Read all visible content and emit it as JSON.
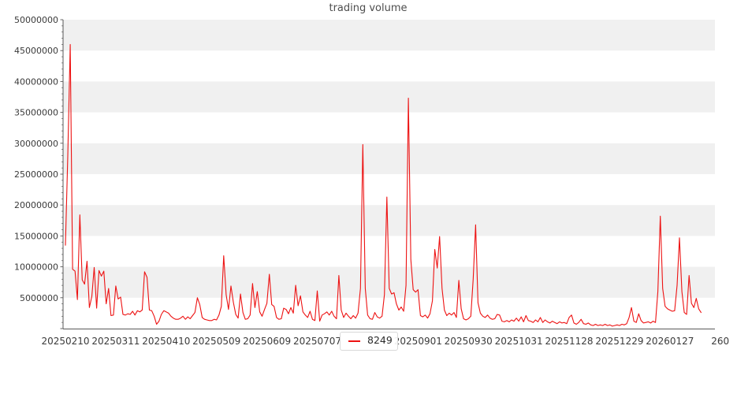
{
  "title": "trading volume",
  "legend": {
    "series_label": "8249",
    "marker": "red-dash"
  },
  "colors": {
    "line": "#ed1212",
    "band": "#f0f0f0",
    "axis": "#595959",
    "tick_label": "#3a3a3a",
    "title": "#4d4d4d",
    "legend_border": "#d8d8d8",
    "background": "#ffffff"
  },
  "chart_data": {
    "type": "line",
    "title": "trading volume",
    "xlabel": "",
    "ylabel": "",
    "ylim": [
      0,
      50000000
    ],
    "grid": "alternating horizontal gray bands every 5000000",
    "legend_position": "bottom-center below axis",
    "y_ticks": {
      "labels": [
        "50000000",
        "45000000",
        "40000000",
        "35000000",
        "30000000",
        "25000000",
        "20000000",
        "15000000",
        "10000000",
        "5000000"
      ],
      "values": [
        50000000,
        45000000,
        40000000,
        35000000,
        30000000,
        25000000,
        20000000,
        15000000,
        10000000,
        5000000
      ],
      "minor_tick_interval": 1000000
    },
    "x_ticks": [
      {
        "label": "20250210",
        "day": 0
      },
      {
        "label": "20250311",
        "day": 21
      },
      {
        "label": "20250410",
        "day": 42
      },
      {
        "label": "20250509",
        "day": 63
      },
      {
        "label": "20250609",
        "day": 84
      },
      {
        "label": "20250707",
        "day": 105
      },
      {
        "label": "20250901",
        "day": 147
      },
      {
        "label": "20250930",
        "day": 168
      },
      {
        "label": "20251031",
        "day": 189
      },
      {
        "label": "20251128",
        "day": 210
      },
      {
        "label": "20251229",
        "day": 231
      },
      {
        "label": "20260127",
        "day": 252
      },
      {
        "label": "260",
        "day": 273
      }
    ],
    "series": [
      {
        "name": "8249",
        "color": "#ed1212",
        "values": [
          13500000,
          28000000,
          46000000,
          9600000,
          9300000,
          4700000,
          18400000,
          7900000,
          7200000,
          10900000,
          3400000,
          5200000,
          9900000,
          3300000,
          9400000,
          8500000,
          9300000,
          4000000,
          6500000,
          2100000,
          2200000,
          6900000,
          4800000,
          5100000,
          2300000,
          2200000,
          2400000,
          2300000,
          2800000,
          2200000,
          2900000,
          2700000,
          3000000,
          9200000,
          8300000,
          3000000,
          2900000,
          2000000,
          700000,
          1200000,
          2300000,
          2900000,
          2700000,
          2500000,
          2000000,
          1700000,
          1500000,
          1500000,
          1700000,
          2000000,
          1500000,
          1900000,
          1600000,
          2100000,
          2600000,
          5000000,
          3900000,
          1800000,
          1500000,
          1400000,
          1300000,
          1300000,
          1500000,
          1400000,
          2200000,
          3600000,
          11800000,
          5500000,
          3100000,
          6900000,
          4300000,
          2300000,
          1700000,
          5600000,
          2600000,
          1500000,
          1600000,
          2200000,
          7300000,
          3400000,
          6000000,
          2700000,
          2000000,
          3100000,
          4100000,
          8800000,
          3900000,
          3600000,
          1800000,
          1500000,
          1600000,
          3300000,
          3100000,
          2400000,
          3400000,
          2500000,
          7000000,
          3700000,
          5300000,
          2700000,
          2200000,
          1800000,
          2800000,
          1500000,
          1300000,
          6100000,
          1200000,
          2200000,
          2400000,
          2700000,
          2200000,
          2800000,
          2000000,
          1600000,
          8600000,
          3000000,
          1800000,
          2500000,
          2000000,
          1600000,
          2100000,
          1700000,
          2500000,
          6500000,
          29800000,
          6500000,
          2200000,
          1600000,
          1500000,
          2600000,
          1900000,
          1700000,
          2000000,
          5500000,
          21300000,
          6500000,
          5600000,
          5800000,
          4000000,
          3000000,
          3500000,
          2800000,
          7000000,
          37300000,
          11200000,
          6300000,
          5900000,
          6300000,
          2100000,
          1900000,
          2200000,
          1700000,
          2400000,
          4500000,
          12800000,
          9800000,
          14900000,
          6500000,
          3000000,
          2100000,
          2500000,
          2200000,
          2600000,
          1800000,
          7800000,
          3200000,
          1600000,
          1400000,
          1600000,
          2000000,
          8000000,
          16800000,
          4200000,
          2500000,
          2000000,
          1800000,
          2200000,
          1700000,
          1500000,
          1600000,
          2300000,
          2200000,
          1200000,
          1100000,
          1300000,
          1100000,
          1400000,
          1200000,
          1700000,
          1200000,
          1900000,
          1100000,
          2100000,
          1300000,
          1200000,
          1000000,
          1400000,
          1100000,
          1800000,
          1000000,
          1400000,
          1100000,
          900000,
          1200000,
          1000000,
          800000,
          1100000,
          900000,
          1000000,
          800000,
          1800000,
          2200000,
          900000,
          700000,
          1000000,
          1500000,
          800000,
          700000,
          900000,
          600000,
          500000,
          700000,
          500000,
          600000,
          500000,
          700000,
          500000,
          600000,
          400000,
          500000,
          600000,
          500000,
          700000,
          600000,
          800000,
          1800000,
          3400000,
          1200000,
          1000000,
          2400000,
          1300000,
          900000,
          1000000,
          1100000,
          900000,
          1200000,
          1000000,
          6000000,
          18200000,
          6500000,
          3600000,
          3200000,
          3000000,
          2800000,
          2900000,
          7000000,
          14700000,
          6000000,
          2600000,
          2300000,
          8600000,
          4100000,
          3400000,
          4900000,
          3200000,
          2600000
        ]
      }
    ]
  }
}
